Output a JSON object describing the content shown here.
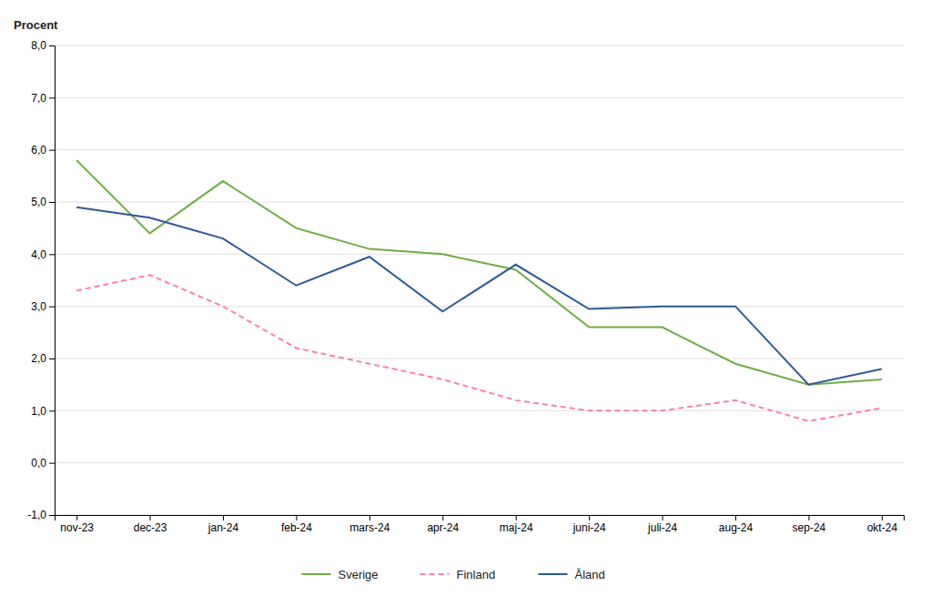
{
  "chart_data": {
    "type": "line",
    "ylabel": "Procent",
    "categories": [
      "nov-23",
      "dec-23",
      "jan-24",
      "feb-24",
      "mars-24",
      "apr-24",
      "maj-24",
      "juni-24",
      "juli-24",
      "aug-24",
      "sep-24",
      "okt-24"
    ],
    "series": [
      {
        "name": "Sverige",
        "color": "#70AD47",
        "line_style": "solid",
        "values": [
          5.8,
          4.4,
          5.4,
          4.5,
          4.1,
          4.0,
          3.7,
          2.6,
          2.6,
          1.9,
          1.5,
          1.6
        ]
      },
      {
        "name": "Finland",
        "color": "#FF80AA",
        "line_style": "dashed",
        "values": [
          3.3,
          3.6,
          3.0,
          2.2,
          1.9,
          1.6,
          1.2,
          1.0,
          1.0,
          1.2,
          0.8,
          1.05
        ]
      },
      {
        "name": "Åland",
        "color": "#2E5999",
        "line_style": "solid",
        "values": [
          4.9,
          4.7,
          4.3,
          3.4,
          3.95,
          2.9,
          3.8,
          2.95,
          3.0,
          3.0,
          1.5,
          1.8
        ]
      }
    ],
    "ylim": [
      -1.0,
      8.0
    ],
    "yticks": [
      {
        "value": -1.0,
        "label": "-1,0"
      },
      {
        "value": 0.0,
        "label": "0,0"
      },
      {
        "value": 1.0,
        "label": "1,0"
      },
      {
        "value": 2.0,
        "label": "2,0"
      },
      {
        "value": 3.0,
        "label": "3,0"
      },
      {
        "value": 4.0,
        "label": "4,0"
      },
      {
        "value": 5.0,
        "label": "5,0"
      },
      {
        "value": 6.0,
        "label": "6,0"
      },
      {
        "value": 7.0,
        "label": "7,0"
      },
      {
        "value": 8.0,
        "label": "8,0"
      }
    ],
    "grid": true,
    "legend": "bottom"
  }
}
